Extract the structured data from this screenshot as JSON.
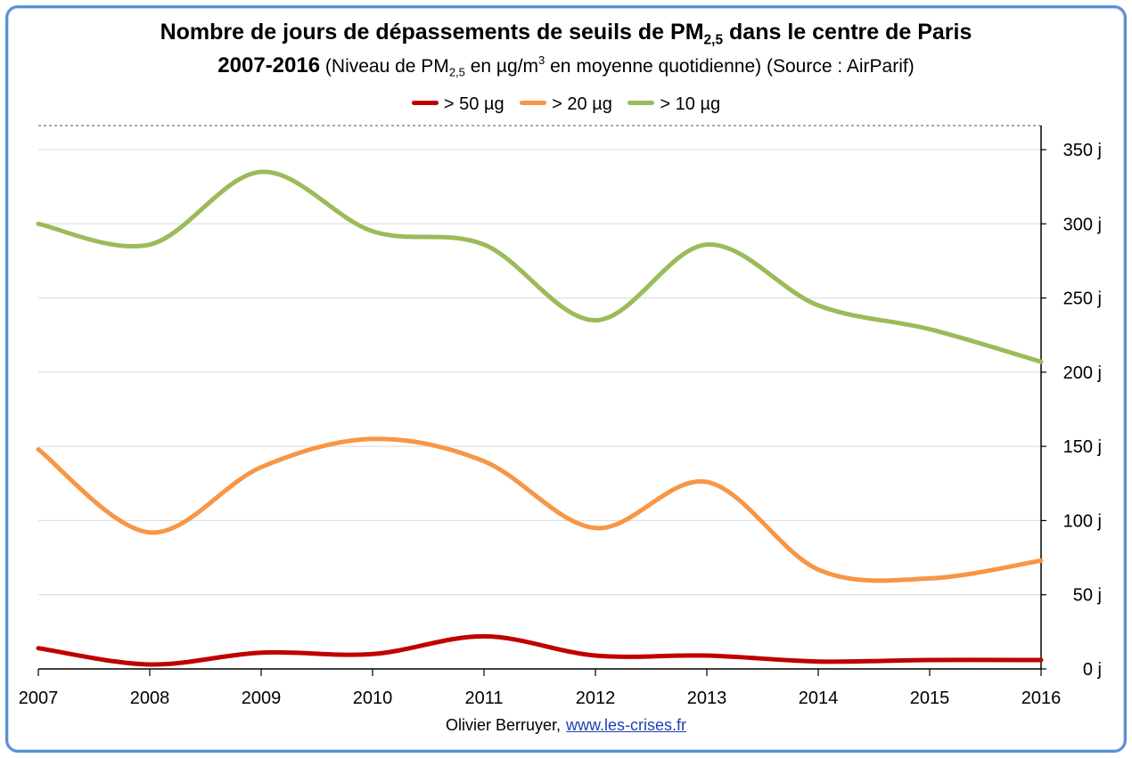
{
  "title": {
    "line1_part1": "Nombre de jours de dépassements de seuils de PM",
    "line1_sub": "2,5",
    "line1_part2": " dans le centre de Paris",
    "line2_years": "2007-2016",
    "line2_a": " (Niveau de PM",
    "line2_sub": "2,5",
    "line2_b": " en µg/m",
    "line2_sup": "3",
    "line2_c": "  en moyenne quotidienne) (Source : AirParif)"
  },
  "credit": {
    "author": "Olivier Berruyer,",
    "link": "www.les-crises.fr"
  },
  "chart_data": {
    "type": "line",
    "x": [
      2007,
      2008,
      2009,
      2010,
      2011,
      2012,
      2013,
      2014,
      2015,
      2016
    ],
    "x_tick_labels": [
      "2007",
      "2008",
      "2009",
      "2010",
      "2011",
      "2012",
      "2013",
      "2014",
      "2015",
      "2016"
    ],
    "y_tick_labels": [
      "0 j",
      "50 j",
      "100 j",
      "150 j",
      "200 j",
      "250 j",
      "300 j",
      "350 j"
    ],
    "y_ticks": [
      0,
      50,
      100,
      150,
      200,
      250,
      300,
      350
    ],
    "ylim": [
      0,
      350
    ],
    "grid": true,
    "legend_position": "top",
    "series": [
      {
        "name": "> 50 µg",
        "color": "#c00000",
        "values": [
          14,
          3,
          11,
          10,
          22,
          9,
          9,
          5,
          6,
          6
        ]
      },
      {
        "name": "> 20 µg",
        "color": "#f79646",
        "values": [
          148,
          92,
          136,
          155,
          140,
          95,
          126,
          67,
          61,
          73
        ]
      },
      {
        "name": "> 10 µg",
        "color": "#9bbb59",
        "values": [
          300,
          286,
          335,
          295,
          286,
          235,
          286,
          245,
          229,
          207
        ]
      }
    ]
  }
}
